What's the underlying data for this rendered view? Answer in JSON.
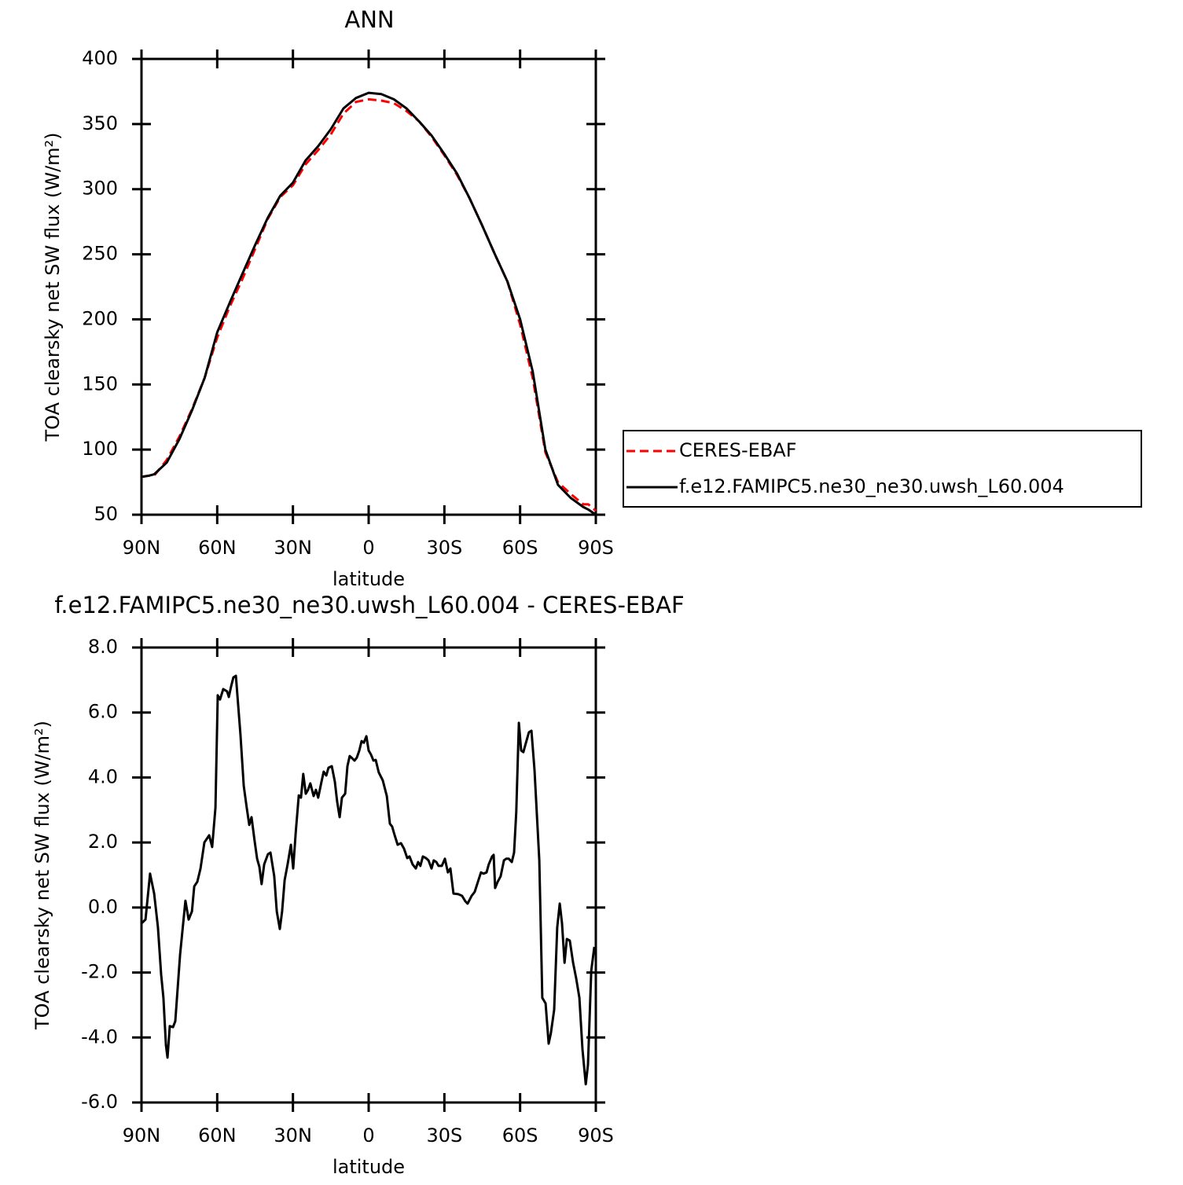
{
  "chart_data": [
    {
      "type": "line",
      "title": "ANN",
      "xlabel": "latitude",
      "ylabel": "TOA clearsky net SW flux (W/m²)",
      "x": [
        90,
        87,
        85,
        80,
        75,
        70,
        65,
        60,
        55,
        50,
        45,
        40,
        35,
        30,
        25,
        20,
        15,
        10,
        5,
        0,
        -5,
        -10,
        -15,
        -20,
        -25,
        -30,
        -35,
        -40,
        -45,
        -50,
        -55,
        -60,
        -65,
        -70,
        -75,
        -80,
        -85,
        -87,
        -90
      ],
      "series": [
        {
          "name": "CERES-EBAF",
          "color": "#ff0000",
          "style": "dashed",
          "values": [
            79,
            80,
            80,
            92,
            110,
            131,
            155,
            186,
            210,
            231,
            254,
            277,
            294,
            303,
            319,
            330,
            342,
            358,
            367,
            369,
            368,
            366,
            360,
            352,
            340,
            326,
            311,
            293,
            272,
            250,
            229,
            196,
            155,
            98,
            75,
            66,
            58,
            58,
            53
          ]
        },
        {
          "name": "f.e12.FAMIPC5.ne30_ne30.uwsh_L60.004",
          "color": "#000000",
          "style": "solid",
          "values": [
            79,
            80,
            81,
            90,
            108,
            130,
            155,
            190,
            213,
            235,
            257,
            278,
            295,
            305,
            322,
            333,
            346,
            362,
            370,
            374,
            373,
            369,
            362,
            352,
            341,
            327,
            312,
            293,
            272,
            250,
            229,
            200,
            160,
            100,
            73,
            63,
            56,
            54,
            50
          ]
        }
      ],
      "xlim": [
        90,
        -90
      ],
      "xticks": [
        {
          "value": 90,
          "label": "90N"
        },
        {
          "value": 60,
          "label": "60N"
        },
        {
          "value": 30,
          "label": "30N"
        },
        0,
        {
          "value": -30,
          "label": "30S"
        },
        {
          "value": -60,
          "label": "60S"
        },
        {
          "value": -90,
          "label": "90S"
        }
      ],
      "ylim": [
        50,
        400
      ],
      "yticks": [
        50,
        100,
        150,
        200,
        250,
        300,
        350,
        400
      ],
      "legend": "right"
    },
    {
      "type": "line",
      "title": "f.e12.FAMIPC5.ne30_ne30.uwsh_L60.004 - CERES-EBAF",
      "xlabel": "latitude",
      "ylabel": "TOA clearsky net SW flux (W/m²)",
      "x": [
        90,
        88.4,
        86.6,
        85,
        83.5,
        82.2,
        81.3,
        80.3,
        79.7,
        78.8,
        77.5,
        76.6,
        74.7,
        72.6,
        71.3,
        70,
        69.1,
        67.9,
        66.6,
        65.1,
        63.2,
        62,
        60.7,
        59.8,
        58.9,
        57.6,
        56.1,
        55.4,
        54.5,
        53.6,
        52.6,
        50.8,
        49.5,
        48.3,
        47.3,
        46.4,
        45.2,
        44.2,
        43.3,
        42.4,
        41.4,
        39.9,
        38.9,
        37.4,
        36.4,
        35.2,
        34.3,
        33.3,
        32.1,
        30.8,
        29.9,
        28.9,
        27.7,
        26.8,
        25.9,
        24.9,
        24,
        23.1,
        21.8,
        20.9,
        20,
        18.7,
        17.8,
        16.8,
        15.9,
        14.6,
        13.4,
        12.5,
        11.5,
        10.6,
        9.3,
        8.4,
        7.5,
        6.5,
        5.6,
        4.7,
        3.7,
        2.8,
        1.9,
        0.9,
        0,
        -0.9,
        -1.9,
        -2.8,
        -4,
        -5.6,
        -7.2,
        -8.4,
        -9.3,
        -10.3,
        -11.5,
        -12.8,
        -14,
        -15.3,
        -16.2,
        -17.4,
        -18.7,
        -19.6,
        -20.5,
        -21.5,
        -22.7,
        -23.7,
        -24.9,
        -25.8,
        -26.8,
        -27.7,
        -29,
        -30.2,
        -31.4,
        -32.4,
        -33.6,
        -35.5,
        -37,
        -38.3,
        -39.2,
        -40.8,
        -42,
        -43.3,
        -44.5,
        -45.5,
        -46.7,
        -47.6,
        -48.9,
        -49.5,
        -50.1,
        -51.1,
        -52.3,
        -53.6,
        -54.5,
        -55.5,
        -56.7,
        -57.6,
        -58.5,
        -59.5,
        -60.4,
        -61.3,
        -62.3,
        -63.5,
        -64.5,
        -65.7,
        -67.6,
        -68.8,
        -70.1,
        -71.3,
        -72.2,
        -73.5,
        -74.7,
        -75.7,
        -76.6,
        -77.6,
        -78.5,
        -79.7,
        -81,
        -82.2,
        -83.5,
        -84.7,
        -86,
        -86.9,
        -88.2,
        -89.4
      ],
      "series": [
        {
          "color": "#000000",
          "style": "solid",
          "values": [
            -0.49,
            -0.37,
            1.04,
            0.43,
            -0.6,
            -2.06,
            -2.78,
            -4.24,
            -4.62,
            -3.65,
            -3.68,
            -3.5,
            -1.45,
            0.21,
            -0.37,
            -0.12,
            0.65,
            0.79,
            1.2,
            2.0,
            2.22,
            1.86,
            3.07,
            6.53,
            6.4,
            6.72,
            6.65,
            6.48,
            6.8,
            7.08,
            7.13,
            5.32,
            3.74,
            3.07,
            2.54,
            2.78,
            2.05,
            1.5,
            1.25,
            0.72,
            1.33,
            1.64,
            1.69,
            0.96,
            -0.12,
            -0.66,
            -0.12,
            0.84,
            1.33,
            1.93,
            1.2,
            2.3,
            3.45,
            3.38,
            4.11,
            3.5,
            3.62,
            3.82,
            3.43,
            3.62,
            3.38,
            3.87,
            4.18,
            4.06,
            4.3,
            4.35,
            3.87,
            3.26,
            2.78,
            3.38,
            3.5,
            4.35,
            4.66,
            4.59,
            4.52,
            4.61,
            4.83,
            5.12,
            5.07,
            5.27,
            4.83,
            4.71,
            4.52,
            4.54,
            4.16,
            3.91,
            3.43,
            2.58,
            2.49,
            2.22,
            1.93,
            1.98,
            1.81,
            1.52,
            1.57,
            1.33,
            1.2,
            1.4,
            1.28,
            1.57,
            1.52,
            1.45,
            1.2,
            1.45,
            1.4,
            1.28,
            1.28,
            1.5,
            1.08,
            1.2,
            0.43,
            0.41,
            0.36,
            0.19,
            0.12,
            0.36,
            0.48,
            0.79,
            1.08,
            1.04,
            1.08,
            1.33,
            1.57,
            1.62,
            0.6,
            0.79,
            0.96,
            1.45,
            1.5,
            1.5,
            1.4,
            1.69,
            2.95,
            5.68,
            4.83,
            4.78,
            5.07,
            5.39,
            5.44,
            4.23,
            1.45,
            -2.78,
            -2.95,
            -4.19,
            -3.87,
            -3.15,
            -0.61,
            0.12,
            -0.49,
            -1.7,
            -0.97,
            -1.02,
            -1.7,
            -2.18,
            -2.78,
            -4.36,
            -5.44,
            -4.84,
            -1.94,
            -1.21
          ]
        }
      ],
      "xlim": [
        90,
        -90
      ],
      "xticks": [
        {
          "value": 90,
          "label": "90N"
        },
        {
          "value": 60,
          "label": "60N"
        },
        {
          "value": 30,
          "label": "30N"
        },
        0,
        {
          "value": -30,
          "label": "30S"
        },
        {
          "value": -60,
          "label": "60S"
        },
        {
          "value": -90,
          "label": "90S"
        }
      ],
      "ylim": [
        -6,
        8
      ],
      "yticks": [
        {
          "value": -6,
          "label": "-6.0"
        },
        {
          "value": -4,
          "label": "-4.0"
        },
        {
          "value": -2,
          "label": "-2.0"
        },
        {
          "value": 0,
          "label": "0.0"
        },
        {
          "value": 2,
          "label": "2.0"
        },
        {
          "value": 4,
          "label": "4.0"
        },
        {
          "value": 6,
          "label": "6.0"
        },
        {
          "value": 8,
          "label": "8.0"
        }
      ]
    }
  ]
}
